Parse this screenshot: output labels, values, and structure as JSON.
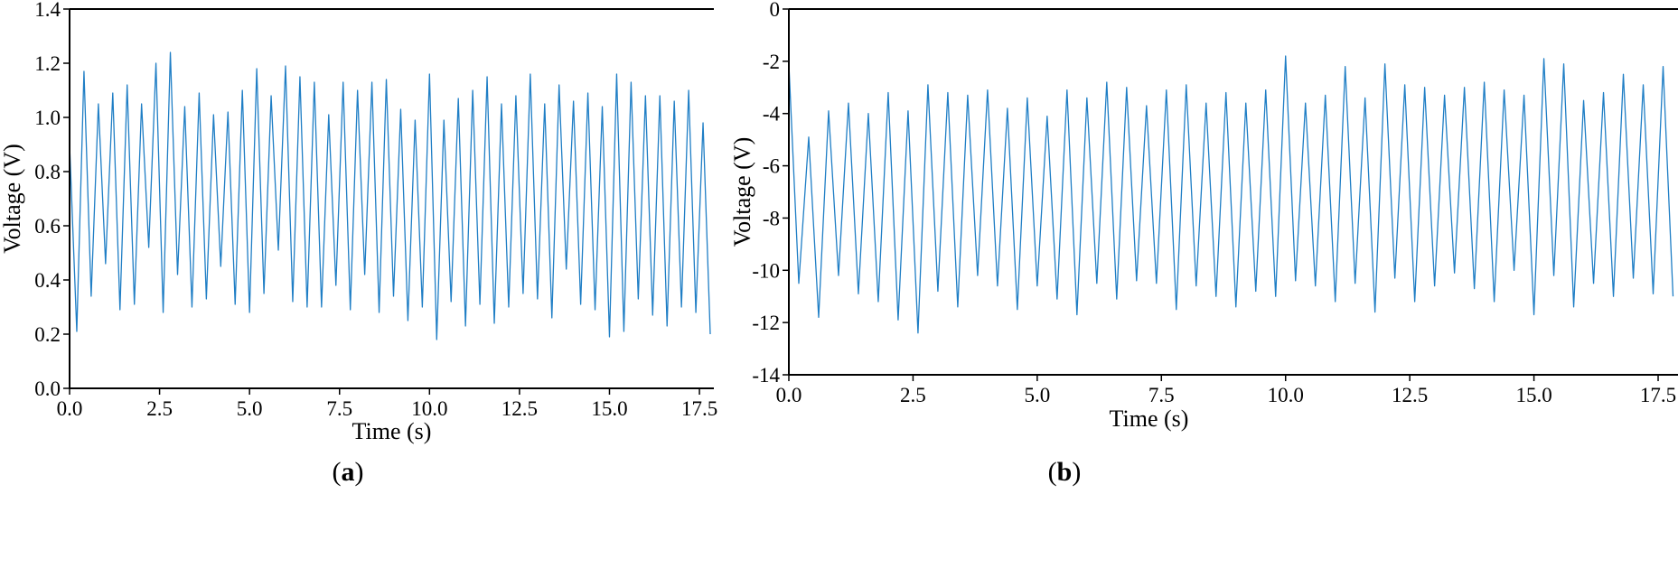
{
  "chart_data": [
    {
      "type": "line",
      "panel_label": "a",
      "title": "",
      "xlabel": "Time (s)",
      "ylabel": "Voltage (V)",
      "xlim": [
        0,
        17.9
      ],
      "ylim": [
        0,
        1.4
      ],
      "xticks": [
        "0.0",
        "2.5",
        "5.0",
        "7.5",
        "10.0",
        "12.5",
        "15.0",
        "17.5"
      ],
      "yticks": [
        "0.0",
        "0.2",
        "0.4",
        "0.6",
        "0.8",
        "1.0",
        "1.2",
        "1.4"
      ],
      "grid": false,
      "series_color": "#1f7ec5",
      "series": [
        {
          "x": [
            0.0,
            0.2,
            0.4,
            0.6,
            0.8,
            1.0,
            1.2,
            1.4,
            1.6,
            1.8,
            2.0,
            2.2,
            2.4,
            2.6,
            2.8,
            3.0,
            3.2,
            3.4,
            3.6,
            3.8,
            4.0,
            4.2,
            4.4,
            4.6,
            4.8,
            5.0,
            5.2,
            5.4,
            5.6,
            5.8,
            6.0,
            6.2,
            6.4,
            6.6,
            6.8,
            7.0,
            7.2,
            7.4,
            7.6,
            7.8,
            8.0,
            8.2,
            8.4,
            8.6,
            8.8,
            9.0,
            9.2,
            9.4,
            9.6,
            9.8,
            10.0,
            10.2,
            10.4,
            10.6,
            10.8,
            11.0,
            11.2,
            11.4,
            11.6,
            11.8,
            12.0,
            12.2,
            12.4,
            12.6,
            12.8,
            13.0,
            13.2,
            13.4,
            13.6,
            13.8,
            14.0,
            14.2,
            14.4,
            14.6,
            14.8,
            15.0,
            15.2,
            15.4,
            15.6,
            15.8,
            16.0,
            16.2,
            16.4,
            16.6,
            16.8,
            17.0,
            17.2,
            17.4,
            17.6,
            17.8
          ],
          "values": [
            0.9,
            0.21,
            1.17,
            0.34,
            1.05,
            0.46,
            1.09,
            0.29,
            1.12,
            0.31,
            1.05,
            0.52,
            1.2,
            0.28,
            1.24,
            0.42,
            1.04,
            0.3,
            1.09,
            0.33,
            1.01,
            0.45,
            1.02,
            0.31,
            1.1,
            0.28,
            1.18,
            0.35,
            1.08,
            0.51,
            1.19,
            0.32,
            1.15,
            0.3,
            1.13,
            0.3,
            1.01,
            0.38,
            1.13,
            0.29,
            1.1,
            0.42,
            1.13,
            0.28,
            1.14,
            0.34,
            1.03,
            0.25,
            0.99,
            0.3,
            1.16,
            0.18,
            0.99,
            0.32,
            1.07,
            0.23,
            1.1,
            0.31,
            1.15,
            0.24,
            1.05,
            0.3,
            1.08,
            0.35,
            1.16,
            0.33,
            1.05,
            0.26,
            1.12,
            0.44,
            1.06,
            0.31,
            1.09,
            0.29,
            1.04,
            0.19,
            1.16,
            0.21,
            1.13,
            0.33,
            1.08,
            0.27,
            1.08,
            0.23,
            1.06,
            0.3,
            1.1,
            0.28,
            0.98,
            0.2
          ]
        }
      ]
    },
    {
      "type": "line",
      "panel_label": "b",
      "title": "",
      "xlabel": "Time (s)",
      "ylabel": "Voltage (V)",
      "xlim": [
        0,
        17.9
      ],
      "ylim": [
        -14,
        0
      ],
      "xticks": [
        "0.0",
        "2.5",
        "5.0",
        "7.5",
        "10.0",
        "12.5",
        "15.0",
        "17.5"
      ],
      "yticks": [
        "0",
        "-2",
        "-4",
        "-6",
        "-8",
        "-10",
        "-12",
        "-14"
      ],
      "grid": false,
      "series_color": "#1f7ec5",
      "series": [
        {
          "x": [
            0.0,
            0.2,
            0.4,
            0.6,
            0.8,
            1.0,
            1.2,
            1.4,
            1.6,
            1.8,
            2.0,
            2.2,
            2.4,
            2.6,
            2.8,
            3.0,
            3.2,
            3.4,
            3.6,
            3.8,
            4.0,
            4.2,
            4.4,
            4.6,
            4.8,
            5.0,
            5.2,
            5.4,
            5.6,
            5.8,
            6.0,
            6.2,
            6.4,
            6.6,
            6.8,
            7.0,
            7.2,
            7.4,
            7.6,
            7.8,
            8.0,
            8.2,
            8.4,
            8.6,
            8.8,
            9.0,
            9.2,
            9.4,
            9.6,
            9.8,
            10.0,
            10.2,
            10.4,
            10.6,
            10.8,
            11.0,
            11.2,
            11.4,
            11.6,
            11.8,
            12.0,
            12.2,
            12.4,
            12.6,
            12.8,
            13.0,
            13.2,
            13.4,
            13.6,
            13.8,
            14.0,
            14.2,
            14.4,
            14.6,
            14.8,
            15.0,
            15.2,
            15.4,
            15.6,
            15.8,
            16.0,
            16.2,
            16.4,
            16.6,
            16.8,
            17.0,
            17.2,
            17.4,
            17.6,
            17.8
          ],
          "values": [
            -2.1,
            -10.5,
            -4.9,
            -11.8,
            -3.9,
            -10.2,
            -3.6,
            -10.9,
            -4.0,
            -11.2,
            -3.2,
            -11.9,
            -3.9,
            -12.4,
            -2.9,
            -10.8,
            -3.2,
            -11.4,
            -3.3,
            -10.2,
            -3.1,
            -10.6,
            -3.8,
            -11.5,
            -3.4,
            -10.6,
            -4.1,
            -11.1,
            -3.1,
            -11.7,
            -3.4,
            -10.5,
            -2.8,
            -11.1,
            -3.0,
            -10.4,
            -3.7,
            -10.5,
            -3.1,
            -11.5,
            -2.9,
            -10.6,
            -3.6,
            -11.0,
            -3.2,
            -11.4,
            -3.6,
            -10.8,
            -3.1,
            -11.0,
            -1.8,
            -10.4,
            -3.6,
            -10.6,
            -3.3,
            -11.2,
            -2.2,
            -10.5,
            -3.4,
            -11.6,
            -2.1,
            -10.3,
            -2.9,
            -11.2,
            -3.0,
            -10.6,
            -3.3,
            -10.1,
            -3.0,
            -10.7,
            -2.8,
            -11.2,
            -3.1,
            -10.0,
            -3.3,
            -11.7,
            -1.9,
            -10.2,
            -2.1,
            -11.4,
            -3.5,
            -10.5,
            -3.2,
            -11.0,
            -2.5,
            -10.3,
            -2.9,
            -10.9,
            -2.2,
            -11.0
          ]
        }
      ]
    }
  ]
}
